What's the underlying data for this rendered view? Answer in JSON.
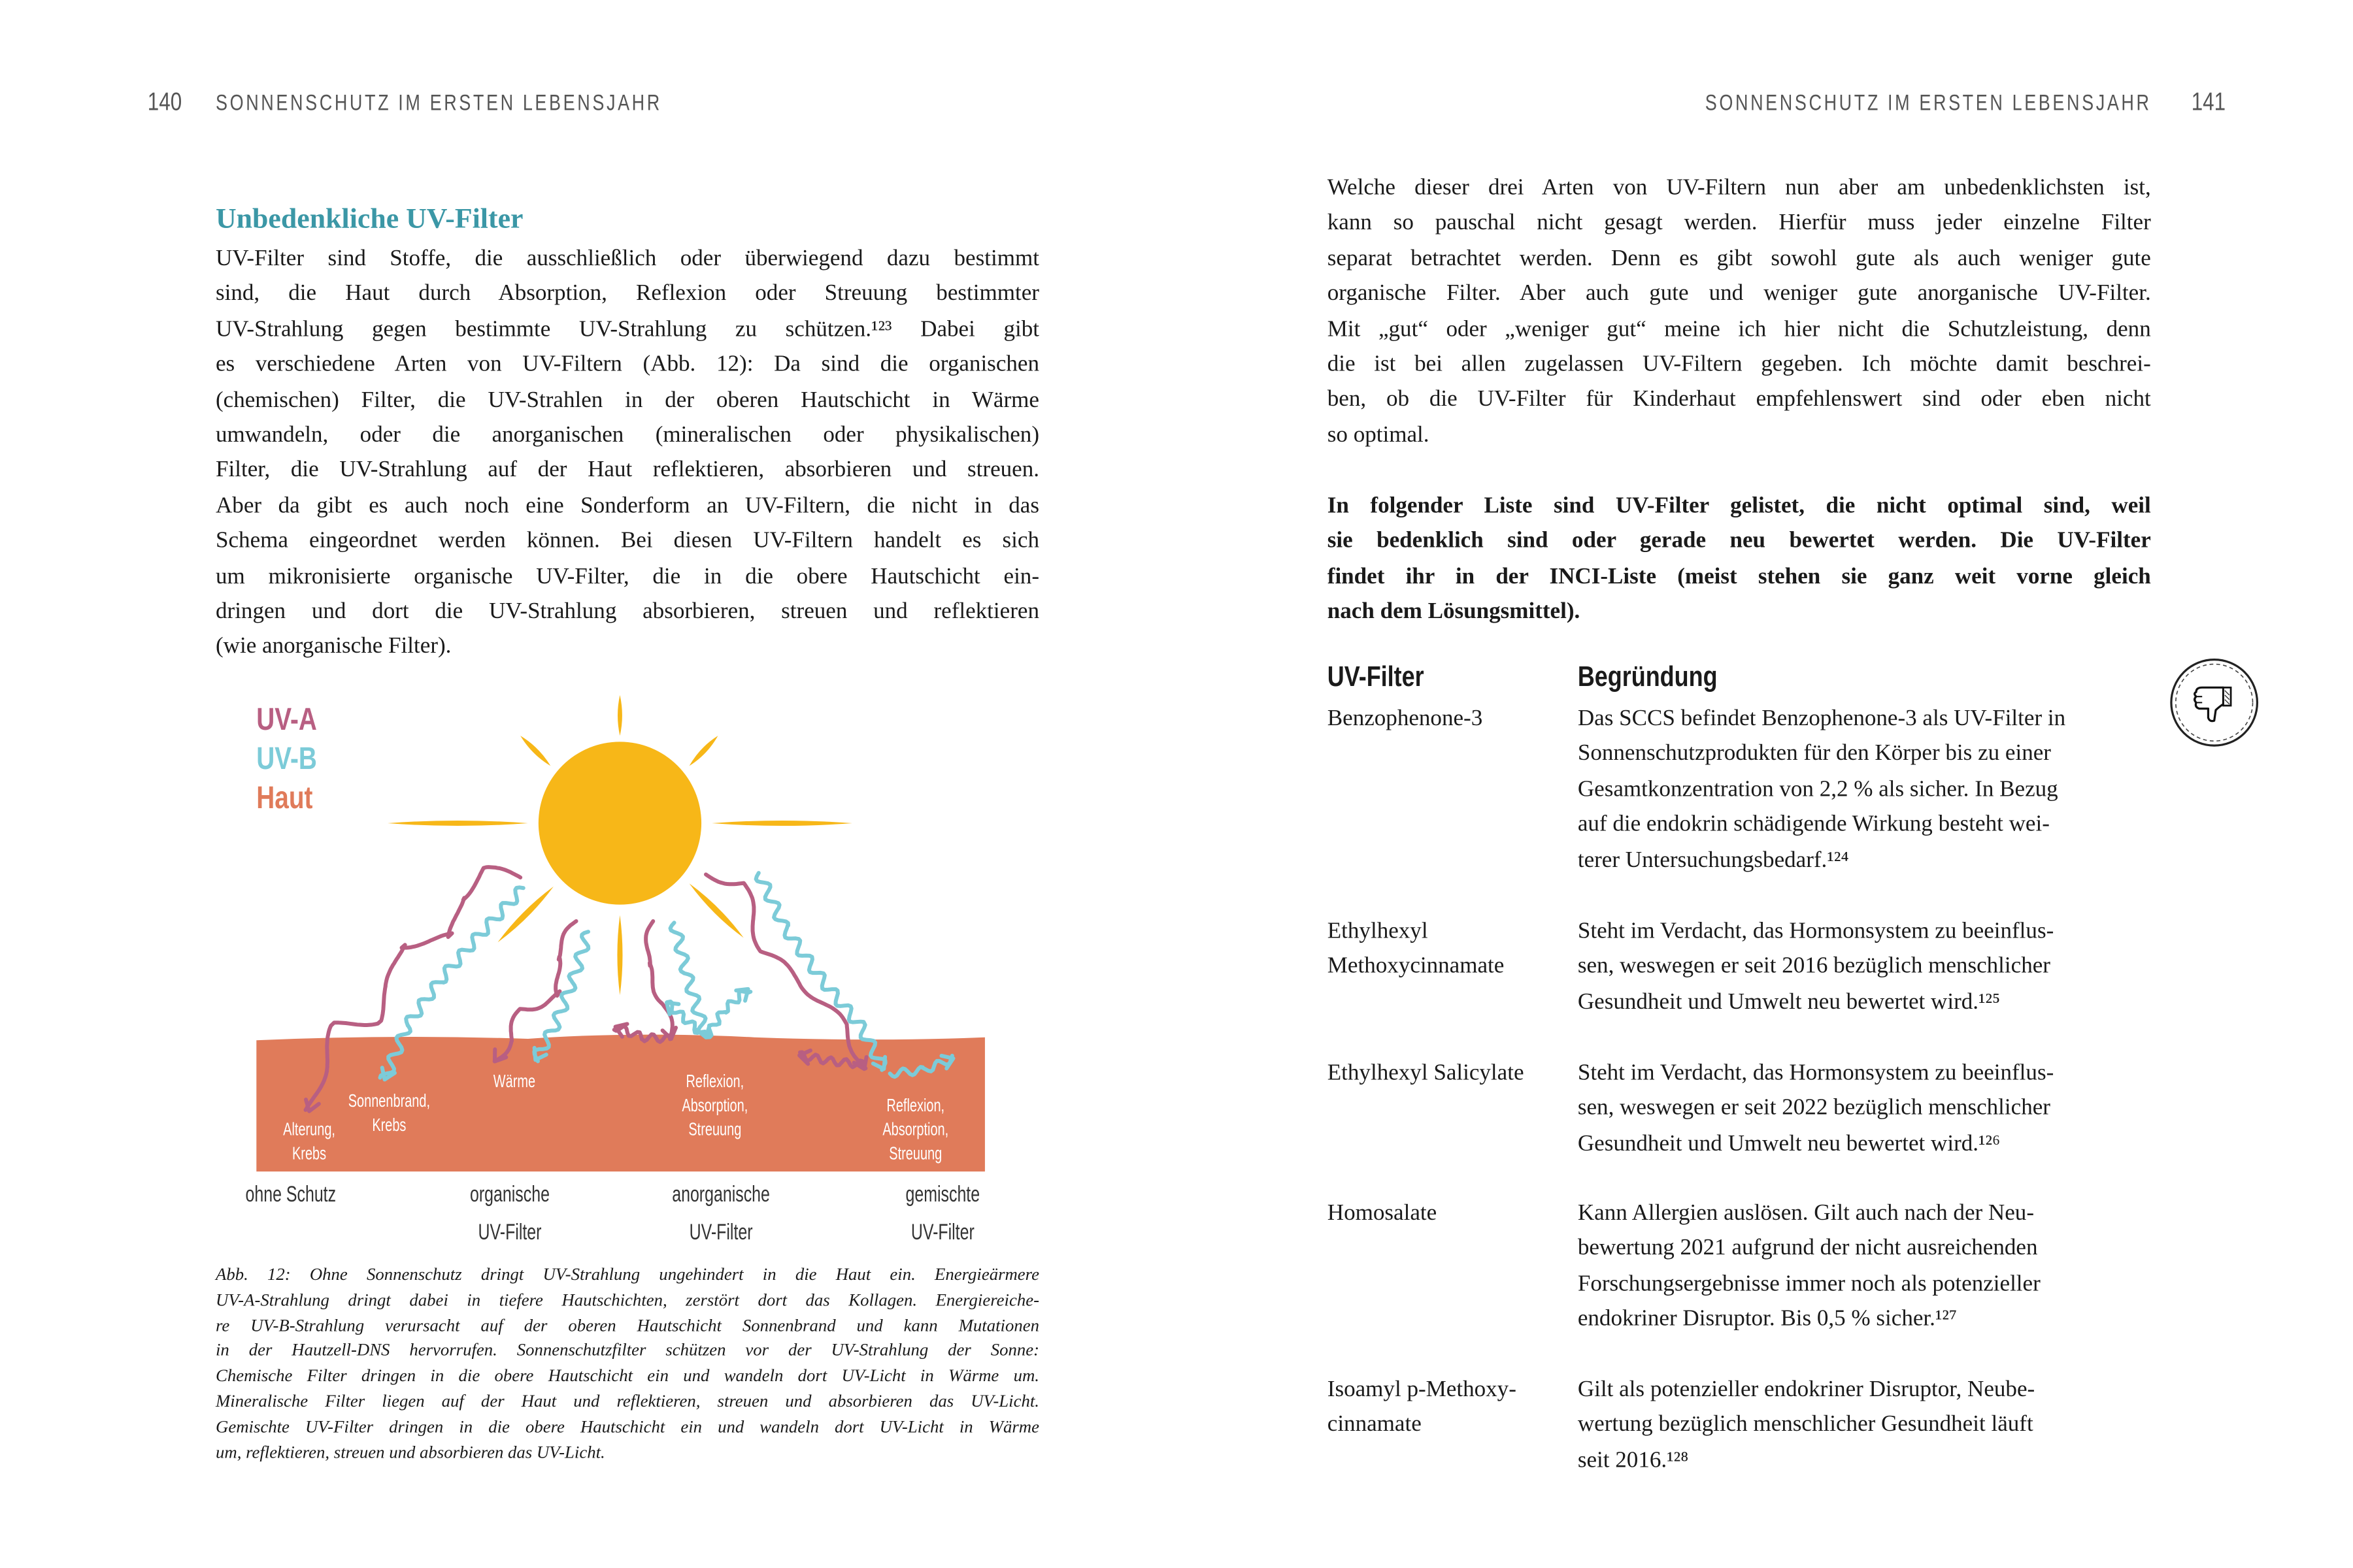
{
  "left_page": {
    "page_number": "140",
    "running_head": "SONNENSCHUTZ IM ERSTEN LEBENSJAHR",
    "heading": "Unbedenkliche UV-Filter",
    "body_lines": [
      "UV-Filter sind Stoffe, die ausschließlich oder überwiegend dazu bestimmt",
      "sind, die Haut durch Absorption, Reflexion oder Streuung bestimmter",
      "UV-Strahlung gegen bestimmte UV-Strahlung zu schützen.¹²³ Dabei gibt",
      "es verschiedene Arten von UV-Filtern (Abb. 12): Da sind die organischen",
      "(chemischen) Filter, die UV-Strahlen in der oberen Hautschicht in Wärme",
      "umwandeln, oder die anorganischen (mineralischen oder physikalischen)",
      "Filter, die UV-Strahlung auf der Haut reflektieren, absorbieren und streuen.",
      "Aber da gibt es auch noch eine Sonderform an UV-Filtern, die nicht in das",
      "Schema eingeordnet werden können. Bei diesen UV-Filtern handelt es sich",
      "um mikronisierte organische UV-Filter, die in die obere Hautschicht ein-",
      "dringen und dort die UV-Strahlung absorbieren, streuen und reflektieren",
      "(wie anorganische Filter)."
    ],
    "figure": {
      "legend": [
        {
          "label": "UV-A",
          "color": "#b85f82"
        },
        {
          "label": "UV-B",
          "color": "#7ccbd8"
        },
        {
          "label": "Haut",
          "color": "#e07b5a"
        }
      ],
      "sun_color": "#f7b718",
      "skin_labels": {
        "aging": [
          "Alterung,",
          "Krebs"
        ],
        "sunburn": [
          "Sonnenbrand,",
          "Krebs"
        ],
        "heat": [
          "Wärme"
        ],
        "inorganic_effect": [
          "Reflexion,",
          "Absorption,",
          "Streuung"
        ],
        "mixed_effect": [
          "Reflexion,",
          "Absorption,",
          "Streuung"
        ]
      },
      "columns": [
        [
          "ohne Schutz"
        ],
        [
          "organische",
          "UV-Filter"
        ],
        [
          "anorganische",
          "UV-Filter"
        ],
        [
          "gemischte",
          "UV-Filter"
        ]
      ]
    },
    "caption_lines": [
      "Abb. 12: Ohne Sonnenschutz dringt UV-Strahlung ungehindert in die Haut ein. Energieärmere",
      "UV-A-Strahlung dringt dabei in tiefere Hautschichten, zerstört dort das Kollagen. Energiereiche-",
      "re UV-B-Strahlung verursacht auf der oberen Hautschicht Sonnenbrand und kann Mutationen",
      "in der Hautzell-DNS hervorrufen. Sonnenschutzfilter schützen vor der UV-Strahlung der Sonne:",
      "Chemische Filter dringen in die obere Hautschicht ein und wandeln dort UV-Licht in Wärme um.",
      "Mineralische Filter liegen auf der Haut und reflektieren, streuen und absorbieren das UV-Licht.",
      "Gemischte UV-Filter dringen in die obere Hautschicht ein und wandeln dort UV-Licht in Wärme",
      "um, reflektieren, streuen und absorbieren das UV-Licht."
    ]
  },
  "right_page": {
    "page_number": "141",
    "running_head": "SONNENSCHUTZ IM ERSTEN LEBENSJAHR",
    "intro_lines": [
      "Welche dieser drei Arten von UV-Filtern nun aber am unbedenklichsten ist,",
      "kann so pauschal nicht gesagt werden. Hierfür muss jeder einzelne Filter",
      "separat betrachtet werden. Denn es gibt sowohl gute als auch weniger gute",
      "organische Filter. Aber auch gute und weniger gute anorganische UV-Filter.",
      "Mit „gut“ oder „weniger gut“ meine ich hier nicht die Schutzleistung, denn",
      "die ist bei allen zugelassen UV-Filtern gegeben. Ich möchte damit beschrei-",
      "ben, ob die UV-Filter für Kinderhaut empfehlenswert sind oder eben nicht",
      "so optimal."
    ],
    "bold_lines": [
      "In folgender Liste sind UV-Filter gelistet, die nicht optimal sind, weil",
      "sie bedenklich sind oder gerade neu bewertet werden. Die UV-Filter",
      "findet ihr in der INCI-Liste (meist stehen sie ganz weit vorne gleich",
      "nach dem Lösungsmittel)."
    ],
    "table": {
      "headers": [
        "UV-Filter",
        "Begründung"
      ],
      "icon": "thumbs-down-icon",
      "rows": [
        {
          "filter": [
            "Benzophenone-3"
          ],
          "reason": [
            "Das SCCS befindet Benzophenone-3 als UV-Filter in",
            "Sonnenschutzprodukten für den Körper bis zu einer",
            "Gesamtkonzentration von 2,2 % als sicher. In Bezug",
            "auf die endokrin schädigende Wirkung besteht wei-",
            "terer Untersuchungsbedarf.¹²⁴"
          ]
        },
        {
          "filter": [
            "Ethylhexyl",
            "Methoxycinnamate"
          ],
          "reason": [
            "Steht im Verdacht, das Hormonsystem zu beeinflus-",
            "sen, weswegen er seit 2016 bezüglich menschlicher",
            "Gesundheit und Umwelt neu bewertet wird.¹²⁵"
          ]
        },
        {
          "filter": [
            "Ethylhexyl Salicylate"
          ],
          "reason": [
            "Steht im Verdacht, das Hormonsystem zu beeinflus-",
            "sen, weswegen er seit 2022 bezüglich menschlicher",
            "Gesundheit und Umwelt neu bewertet wird.¹²⁶"
          ]
        },
        {
          "filter": [
            "Homosalate"
          ],
          "reason": [
            "Kann Allergien auslösen. Gilt auch nach der Neu-",
            "bewertung 2021 aufgrund der nicht ausreichenden",
            "Forschungsergebnisse immer noch als potenzieller",
            "endokriner Disruptor. Bis 0,5 % sicher.¹²⁷"
          ]
        },
        {
          "filter": [
            "Isoamyl p-Methoxy-",
            "cinnamate"
          ],
          "reason": [
            "Gilt als potenzieller endokriner Disruptor, Neube-",
            "wertung bezüglich menschlicher Gesundheit läuft",
            "seit 2016.¹²⁸"
          ]
        }
      ]
    }
  }
}
